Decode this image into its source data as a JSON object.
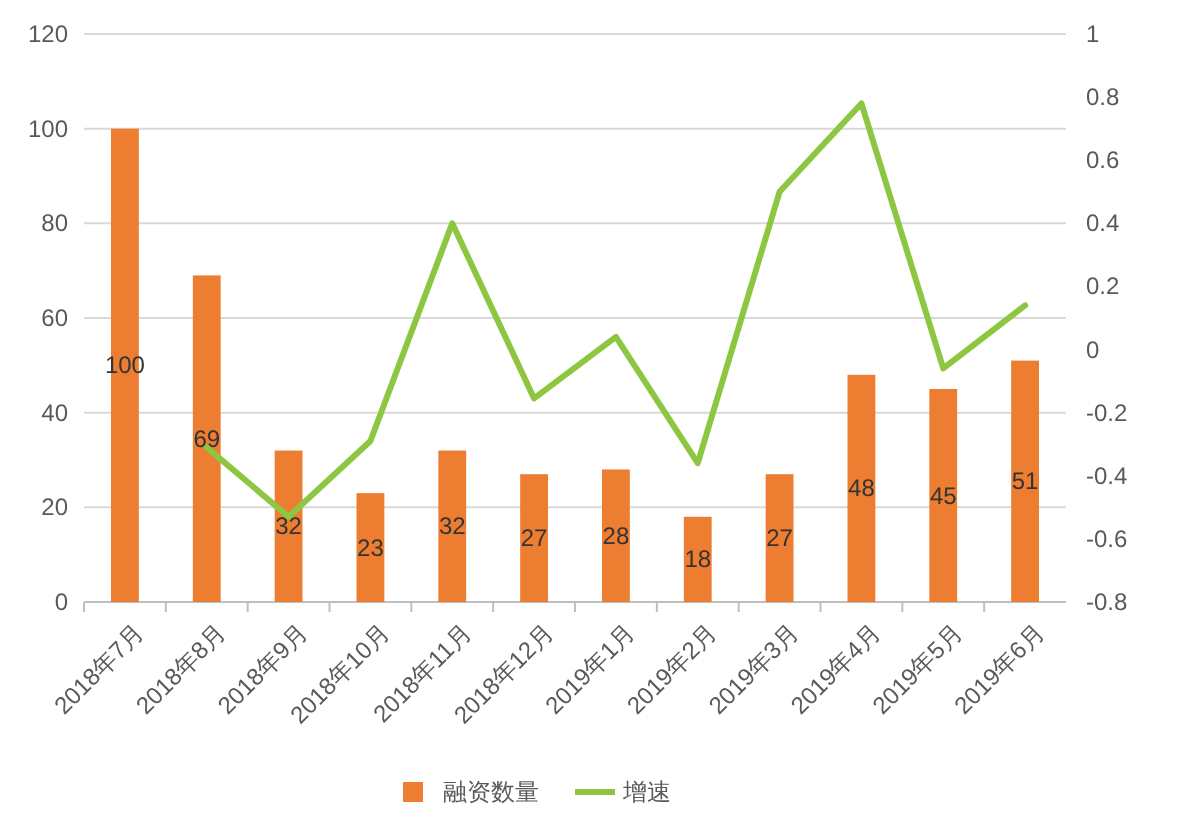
{
  "chart_data": {
    "type": "bar",
    "categories": [
      "2018年7月",
      "2018年8月",
      "2018年9月",
      "2018年10月",
      "2018年11月",
      "2018年12月",
      "2019年1月",
      "2019年2月",
      "2019年3月",
      "2019年4月",
      "2019年5月",
      "2019年6月"
    ],
    "series": [
      {
        "name": "融资数量",
        "color": "#ed7d31",
        "values": [
          100,
          69,
          32,
          23,
          32,
          27,
          28,
          18,
          27,
          48,
          45,
          51
        ],
        "value_labels": [
          "100",
          "69",
          "32",
          "23",
          "32",
          "27",
          "28",
          "18",
          "27",
          "48",
          "45",
          "51"
        ]
      },
      {
        "name": "增速",
        "type": "line",
        "axis": "y2",
        "color": "#8dc641",
        "values": [
          null,
          -0.31,
          -0.53,
          -0.29,
          0.4,
          -0.155,
          0.04,
          -0.36,
          0.5,
          0.78,
          -0.06,
          0.14
        ]
      }
    ],
    "ylim": [
      0,
      120
    ],
    "yticks": [
      0,
      20,
      40,
      60,
      80,
      100,
      120
    ],
    "y2lim": [
      -0.8,
      1
    ],
    "y2ticks": [
      -0.8,
      -0.6,
      -0.4,
      -0.2,
      0,
      0.2,
      0.4,
      0.6,
      0.8,
      1
    ],
    "grid": "y",
    "legend": "bottom",
    "marker": "none"
  }
}
